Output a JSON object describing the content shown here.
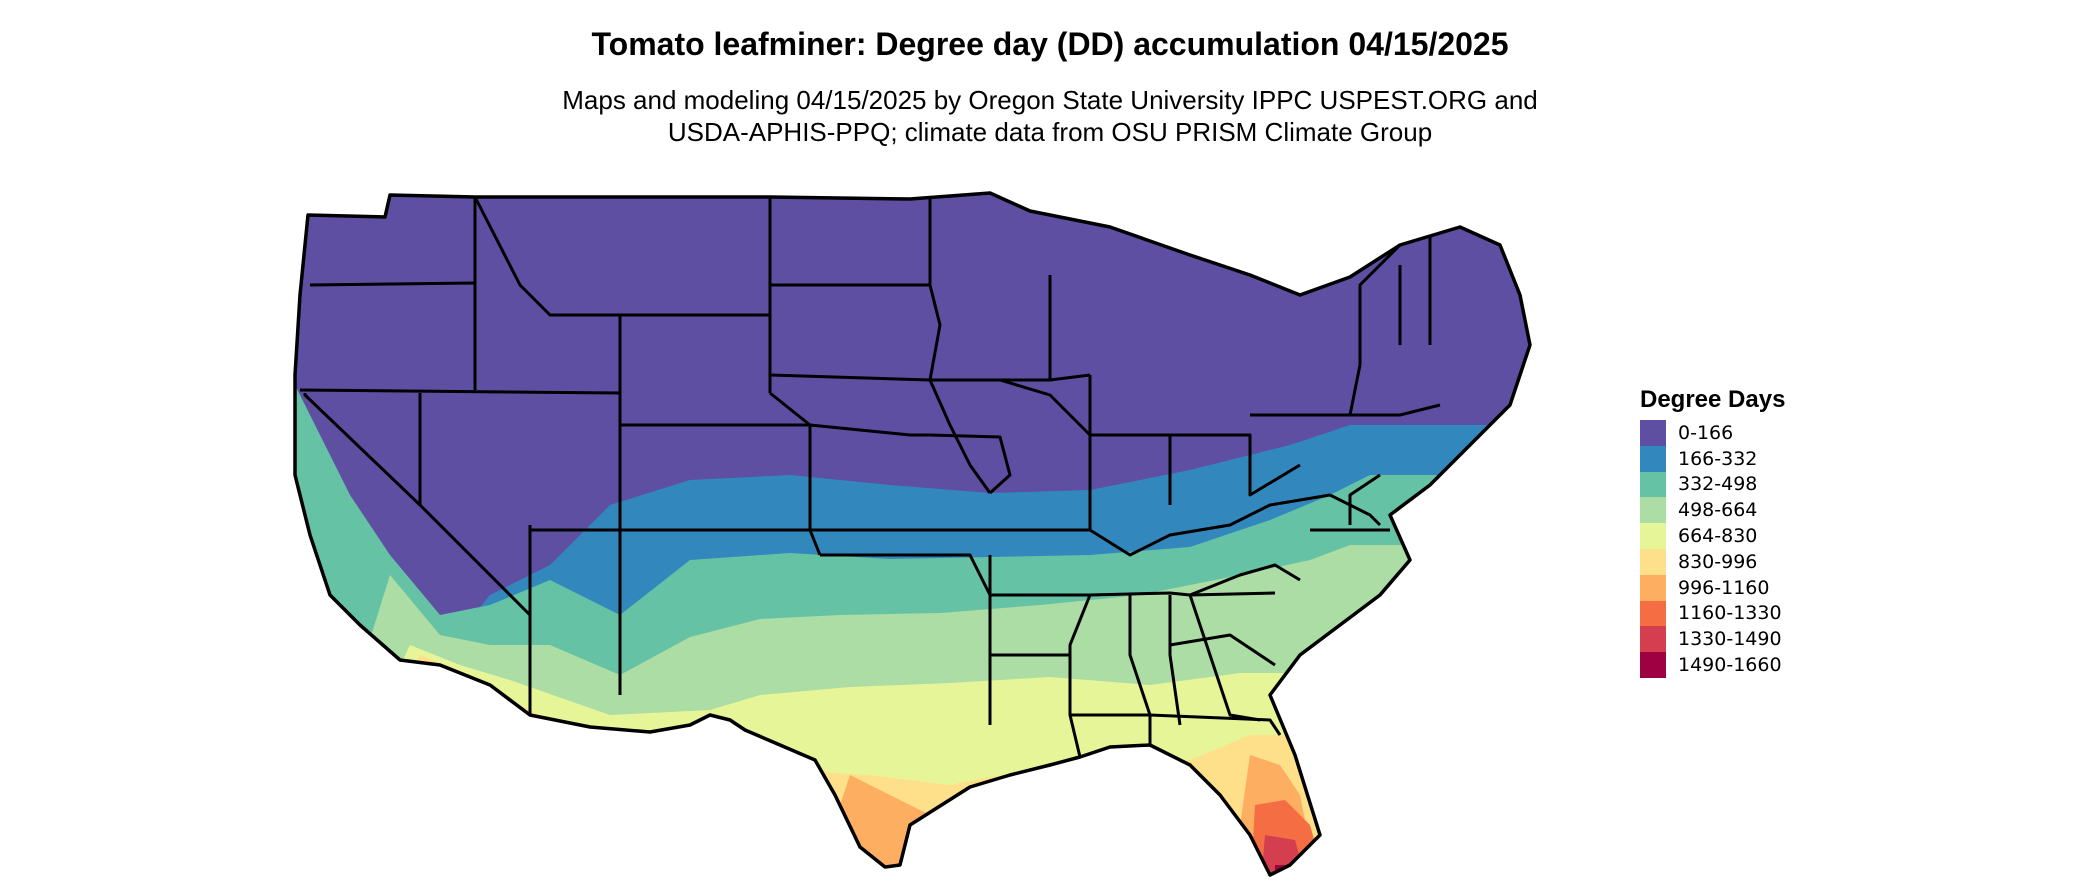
{
  "title": "Tomato leafminer: Degree day (DD) accumulation 04/15/2025",
  "subtitle_line1": "Maps and modeling 04/15/2025 by Oregon State University IPPC USPEST.ORG and",
  "subtitle_line2": "USDA-APHIS-PPQ; climate data from OSU PRISM Climate Group",
  "legend": {
    "title": "Degree Days",
    "items": [
      {
        "label": "0-166",
        "color": "#5e4fa2"
      },
      {
        "label": "166-332",
        "color": "#3288bd"
      },
      {
        "label": "332-498",
        "color": "#66c2a5"
      },
      {
        "label": "498-664",
        "color": "#abdda4"
      },
      {
        "label": "664-830",
        "color": "#e6f598"
      },
      {
        "label": "830-996",
        "color": "#fee08b"
      },
      {
        "label": "996-1160",
        "color": "#fdae61"
      },
      {
        "label": "1160-1330",
        "color": "#f46d43"
      },
      {
        "label": "1330-1490",
        "color": "#d53e4f"
      },
      {
        "label": "1490-1660",
        "color": "#9e0142"
      }
    ]
  }
}
